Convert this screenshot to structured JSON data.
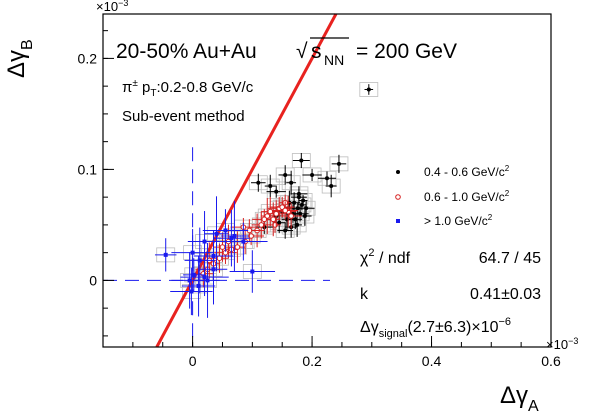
{
  "chart_data": {
    "type": "scatter",
    "title": "20-50% Au+Au",
    "energy_label": "= 200 GeV",
    "energy_sqrt": "s",
    "energy_sub": "NN",
    "particle": {
      "base": "π",
      "sup": "±",
      "mid": " p",
      "sub": "T",
      "rest": ":0.2-0.8 GeV/c"
    },
    "method": "Sub-event method",
    "xlabel": {
      "base": "Δγ",
      "sub": "A"
    },
    "ylabel": {
      "base": "Δγ",
      "sub": "B"
    },
    "exponent": {
      "base": "×10",
      "sup": "−3"
    },
    "xlim": [
      -0.15,
      0.6
    ],
    "ylim": [
      -0.06,
      0.24
    ],
    "xticks": [
      {
        "v": 0,
        "label": "0"
      },
      {
        "v": 0.2,
        "label": "0.2"
      },
      {
        "v": 0.4,
        "label": "0.4"
      },
      {
        "v": 0.6,
        "label": "0.6"
      }
    ],
    "yticks": [
      {
        "v": 0,
        "label": "0"
      },
      {
        "v": 0.1,
        "label": "0.1"
      },
      {
        "v": 0.2,
        "label": "0.2"
      }
    ],
    "fit_line": {
      "color": "#e8221f",
      "slope": 1,
      "intercept": 0
    },
    "series": [
      {
        "name": "0.4 - 0.6 GeV/c",
        "sup": "2",
        "color": "#000000",
        "marker": "dot",
        "points": [
          [
            0.295,
            0.172
          ],
          [
            0.182,
            0.108
          ],
          [
            0.155,
            0.095
          ],
          [
            0.165,
            0.088
          ],
          [
            0.225,
            0.092
          ],
          [
            0.245,
            0.105
          ],
          [
            0.232,
            0.085
          ],
          [
            0.2,
            0.095
          ],
          [
            0.178,
            0.075
          ],
          [
            0.17,
            0.07
          ],
          [
            0.176,
            0.065
          ],
          [
            0.18,
            0.06
          ],
          [
            0.172,
            0.055
          ],
          [
            0.162,
            0.07
          ],
          [
            0.16,
            0.065
          ],
          [
            0.168,
            0.06
          ],
          [
            0.158,
            0.055
          ],
          [
            0.15,
            0.062
          ],
          [
            0.14,
            0.058
          ],
          [
            0.145,
            0.052
          ],
          [
            0.185,
            0.072
          ],
          [
            0.19,
            0.065
          ],
          [
            0.188,
            0.058
          ],
          [
            0.175,
            0.05
          ],
          [
            0.12,
            0.048
          ],
          [
            0.11,
            0.088
          ],
          [
            0.13,
            0.085
          ],
          [
            0.14,
            0.08
          ],
          [
            0.155,
            0.045
          ],
          [
            0.165,
            0.048
          ],
          [
            0.183,
            0.068
          ],
          [
            0.178,
            0.078
          ]
        ]
      },
      {
        "name": "0.6 - 1.0 GeV/c",
        "sup": "2",
        "color": "#d62020",
        "marker": "circle",
        "points": [
          [
            0.155,
            0.07
          ],
          [
            0.145,
            0.065
          ],
          [
            0.13,
            0.062
          ],
          [
            0.125,
            0.058
          ],
          [
            0.12,
            0.055
          ],
          [
            0.115,
            0.05
          ],
          [
            0.108,
            0.045
          ],
          [
            0.098,
            0.04
          ],
          [
            0.088,
            0.035
          ],
          [
            0.075,
            0.03
          ],
          [
            0.065,
            0.028
          ],
          [
            0.055,
            0.025
          ],
          [
            0.045,
            0.02
          ],
          [
            0.035,
            0.015
          ],
          [
            0.025,
            0.01
          ],
          [
            0.018,
            0.006
          ],
          [
            0.06,
            0.035
          ],
          [
            0.085,
            0.048
          ],
          [
            0.165,
            0.058
          ],
          [
            0.16,
            0.062
          ],
          [
            0.138,
            0.05
          ],
          [
            0.095,
            0.045
          ],
          [
            0.05,
            0.03
          ],
          [
            0.028,
            0.018
          ],
          [
            0.15,
            0.066
          ],
          [
            0.14,
            0.06
          ],
          [
            0.135,
            0.055
          ],
          [
            0.155,
            0.063
          ]
        ]
      },
      {
        "name": "> 1.0 GeV/c",
        "sup": "2",
        "color": "#1a1aee",
        "marker": "square",
        "points": [
          [
            -0.045,
            0.023
          ],
          [
            0.0,
            0.025
          ],
          [
            0.02,
            0.035
          ],
          [
            0.04,
            0.042
          ],
          [
            0.055,
            0.045
          ],
          [
            0.065,
            0.038
          ],
          [
            0.07,
            0.04
          ],
          [
            0.085,
            0.035
          ],
          [
            0.035,
            0.022
          ],
          [
            0.012,
            0.018
          ],
          [
            0.002,
            0.005
          ],
          [
            -0.002,
            -0.01
          ],
          [
            0.01,
            -0.005
          ],
          [
            0.025,
            0.0
          ],
          [
            0.1,
            0.008
          ],
          [
            -0.005,
            0.0
          ],
          [
            0.035,
            0.01
          ],
          [
            0.02,
            0.003
          ]
        ]
      }
    ],
    "stats": [
      {
        "key": "χ",
        "sup": "2",
        "rest": " / ndf",
        "value": "64.7 / 45"
      },
      {
        "key": "k",
        "sup": "",
        "rest": "",
        "value": "0.41±0.03"
      },
      {
        "key": "Δγ",
        "sub": "signal",
        "value": "(2.7±6.3)×10",
        "vsup": "−6"
      }
    ]
  }
}
